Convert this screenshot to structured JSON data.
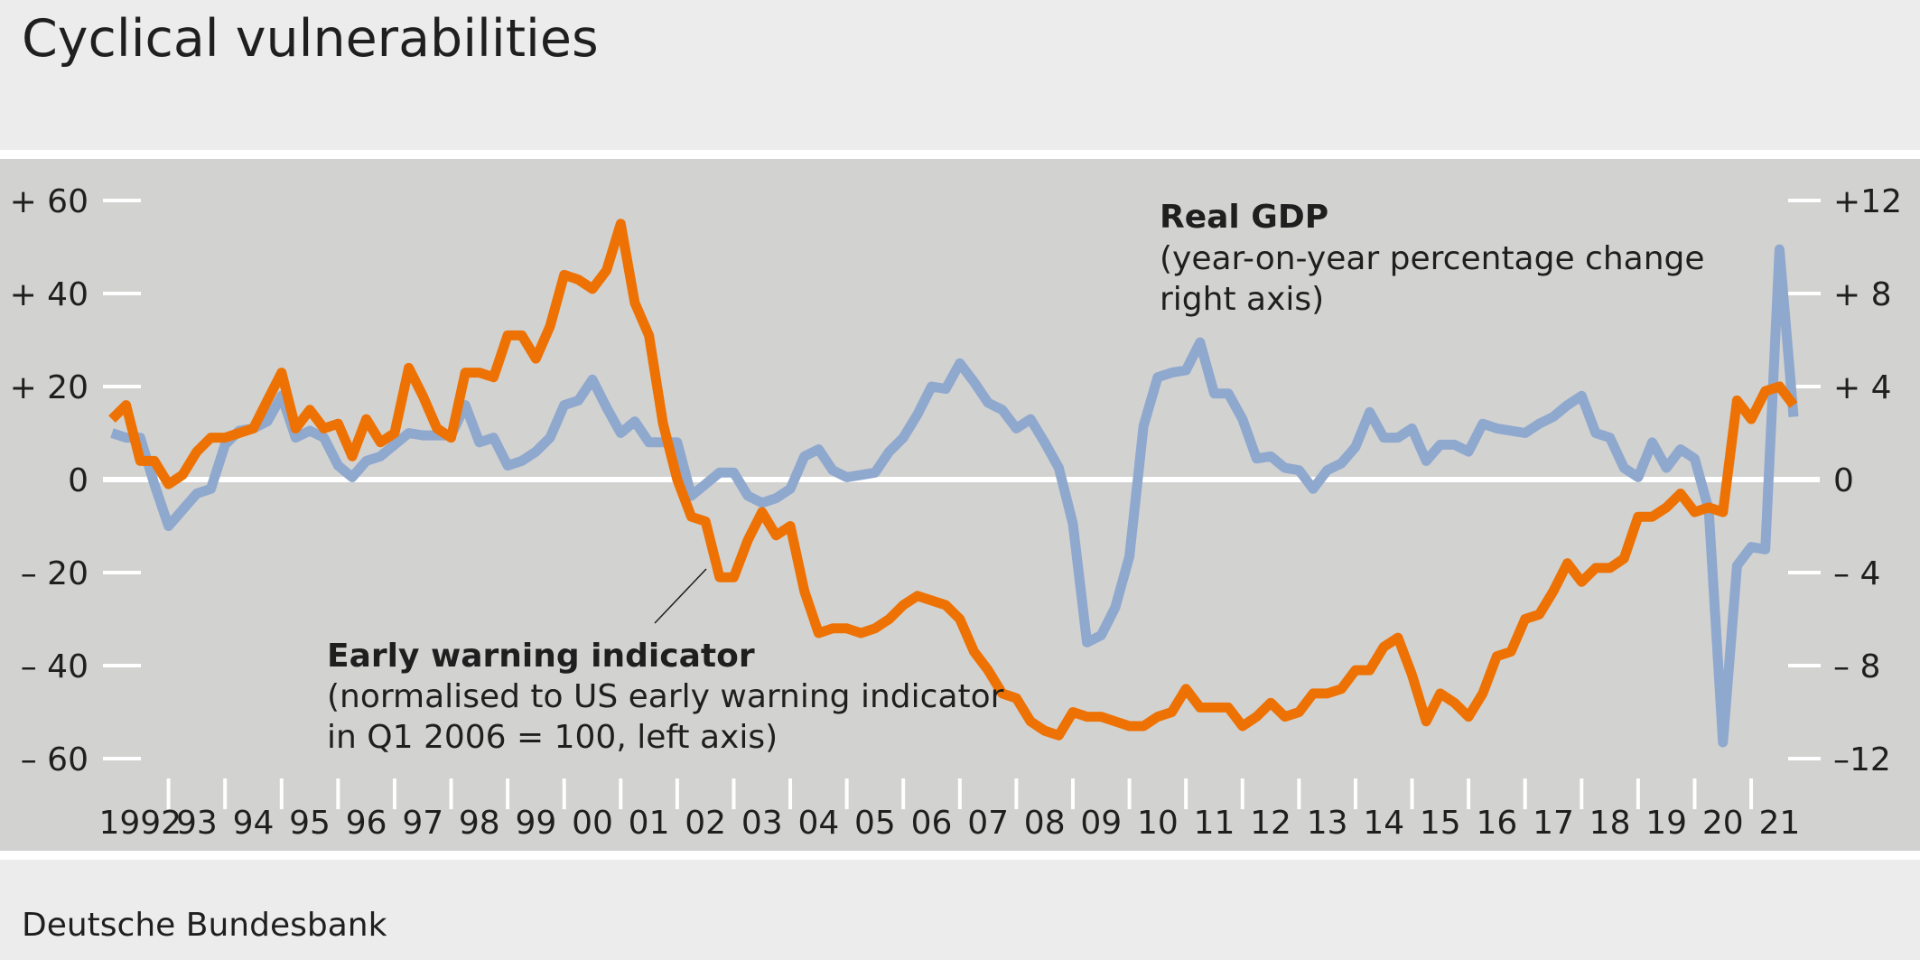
{
  "title": "Cyclical vulnerabilities",
  "source": "Deutsche Bundesbank",
  "colors": {
    "background": "#ececec",
    "plot_background": "#d2d2d1",
    "early_warning": "#ee7203",
    "gdp": "#8fa8ce",
    "grid": "#ffffff"
  },
  "chart_data": {
    "type": "line",
    "x_range": [
      1992.0,
      2021.75
    ],
    "x_tick_labels": [
      "1992",
      "93",
      "94",
      "95",
      "96",
      "97",
      "98",
      "99",
      "00",
      "01",
      "02",
      "03",
      "04",
      "05",
      "06",
      "07",
      "08",
      "09",
      "10",
      "11",
      "12",
      "13",
      "14",
      "15",
      "16",
      "17",
      "18",
      "19",
      "20",
      "21"
    ],
    "left_axis": {
      "range": [
        -60,
        60
      ],
      "tick_values": [
        60,
        40,
        20,
        0,
        -20,
        -40,
        -60
      ],
      "tick_labels": [
        "+ 60",
        "+ 40",
        "+ 20",
        "0",
        "– 20",
        "– 40",
        "– 60"
      ]
    },
    "right_axis": {
      "range": [
        -12,
        12
      ],
      "tick_values": [
        12,
        8,
        4,
        0,
        -4,
        -8,
        -12
      ],
      "tick_labels": [
        "+12",
        "+ 8",
        "+ 4",
        "0",
        "– 4",
        "– 8",
        "–12"
      ]
    },
    "series": [
      {
        "name": "Early warning indicator",
        "axis": "left",
        "x_start": 1992.0,
        "x_step": 0.25,
        "values": [
          13,
          16,
          4,
          4,
          -1,
          1,
          6,
          9,
          9,
          10,
          11,
          17,
          23,
          11,
          15,
          11,
          12,
          5,
          13,
          8,
          10,
          24,
          18,
          11,
          9,
          23,
          23,
          22,
          31,
          31,
          26,
          33,
          44,
          43,
          41,
          45,
          55,
          38,
          31,
          12,
          0,
          -8,
          -9,
          -21,
          -21,
          -13,
          -7,
          -12,
          -10,
          -24,
          -33,
          -32,
          -32,
          -33,
          -32,
          -30,
          -27,
          -25,
          -26,
          -27,
          -30,
          -37,
          -41,
          -46,
          -47,
          -52,
          -54,
          -55,
          -50,
          -51,
          -51,
          -52,
          -53,
          -53,
          -51,
          -50,
          -45,
          -49,
          -49,
          -49,
          -53,
          -51,
          -48,
          -51,
          -50,
          -46,
          -46,
          -45,
          -41,
          -41,
          -36,
          -34,
          -42,
          -52,
          -46,
          -48,
          -51,
          -46,
          -38,
          -37,
          -30,
          -29,
          -24,
          -18,
          -22,
          -19,
          -19,
          -17,
          -8,
          -8,
          -6,
          -3,
          -7,
          -6,
          -7,
          17,
          13,
          19,
          20,
          16
        ]
      },
      {
        "name": "Real GDP",
        "axis": "right",
        "x_start": 1992.0,
        "x_step": 0.25,
        "values": [
          2.0,
          1.8,
          1.8,
          -0.2,
          -2.0,
          -1.3,
          -0.6,
          -0.4,
          1.5,
          2.1,
          2.2,
          2.5,
          3.6,
          1.8,
          2.1,
          1.8,
          0.6,
          0.1,
          0.8,
          1.0,
          1.5,
          2.0,
          1.9,
          1.9,
          1.9,
          3.2,
          1.6,
          1.8,
          0.6,
          0.8,
          1.2,
          1.8,
          3.2,
          3.4,
          4.3,
          3.1,
          2.0,
          2.5,
          1.6,
          1.6,
          1.6,
          -0.7,
          -0.2,
          0.3,
          0.3,
          -0.7,
          -1.0,
          -0.8,
          -0.4,
          1.0,
          1.3,
          0.4,
          0.1,
          0.2,
          0.3,
          1.2,
          1.8,
          2.8,
          4.0,
          3.9,
          5.0,
          4.2,
          3.3,
          3.0,
          2.2,
          2.6,
          1.6,
          0.5,
          -1.9,
          -7.0,
          -6.7,
          -5.5,
          -3.3,
          2.3,
          4.4,
          4.6,
          4.7,
          5.9,
          3.7,
          3.7,
          2.6,
          0.9,
          1.0,
          0.5,
          0.4,
          -0.4,
          0.4,
          0.7,
          1.4,
          2.9,
          1.8,
          1.8,
          2.2,
          0.8,
          1.5,
          1.5,
          1.2,
          2.4,
          2.2,
          2.1,
          2.0,
          2.4,
          2.7,
          3.2,
          3.6,
          2.0,
          1.8,
          0.5,
          0.1,
          1.6,
          0.5,
          1.3,
          0.9,
          -1.3,
          -11.3,
          -3.7,
          -2.9,
          -3.0,
          9.9,
          2.7
        ]
      }
    ],
    "annotations": [
      {
        "bold": "Real GDP",
        "lines": [
          "(year-on-year percentage change",
          "right axis)"
        ]
      },
      {
        "bold": "Early warning indicator",
        "lines": [
          "(normalised to US early warning indicator",
          "in Q1 2006 = 100, left axis)"
        ]
      }
    ]
  }
}
